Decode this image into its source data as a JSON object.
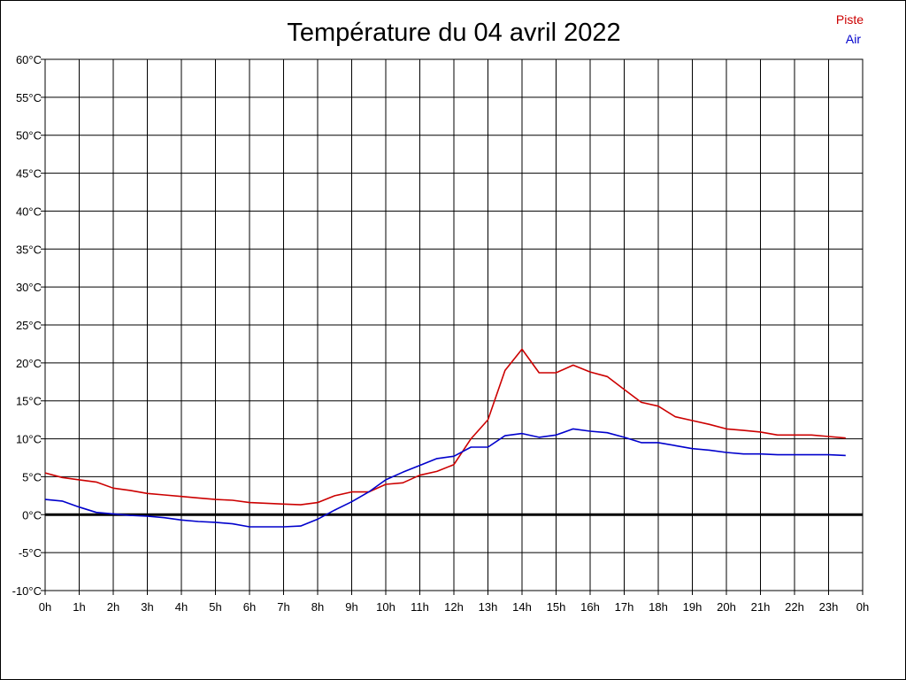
{
  "chart_data": {
    "type": "line",
    "title": "Température du 04 avril 2022",
    "xlabel": "",
    "ylabel": "",
    "x_unit_suffix": "h",
    "y_unit_suffix": "°C",
    "xlim": [
      0,
      24
    ],
    "ylim": [
      -10,
      60
    ],
    "x_ticks": [
      0,
      1,
      2,
      3,
      4,
      5,
      6,
      7,
      8,
      9,
      10,
      11,
      12,
      13,
      14,
      15,
      16,
      17,
      18,
      19,
      20,
      21,
      22,
      23,
      24
    ],
    "x_tick_labels": [
      "0h",
      "1h",
      "2h",
      "3h",
      "4h",
      "5h",
      "6h",
      "7h",
      "8h",
      "9h",
      "10h",
      "11h",
      "12h",
      "13h",
      "14h",
      "15h",
      "16h",
      "17h",
      "18h",
      "19h",
      "20h",
      "21h",
      "22h",
      "23h",
      "0h"
    ],
    "y_ticks": [
      -10,
      -5,
      0,
      5,
      10,
      15,
      20,
      25,
      30,
      35,
      40,
      45,
      50,
      55,
      60
    ],
    "y_tick_labels": [
      "-10°C",
      "-5°C",
      "0°C",
      "5°C",
      "10°C",
      "15°C",
      "20°C",
      "25°C",
      "30°C",
      "35°C",
      "40°C",
      "45°C",
      "50°C",
      "55°C",
      "60°C"
    ],
    "grid": true,
    "legend_position": "top-right",
    "zero_line": true,
    "series": [
      {
        "name": "Piste",
        "color": "#cc0000",
        "points": [
          [
            0,
            5.5
          ],
          [
            0.5,
            4.9
          ],
          [
            1,
            4.6
          ],
          [
            1.5,
            4.3
          ],
          [
            2,
            3.5
          ],
          [
            2.5,
            3.2
          ],
          [
            3,
            2.8
          ],
          [
            3.5,
            2.6
          ],
          [
            4,
            2.4
          ],
          [
            4.5,
            2.2
          ],
          [
            5,
            2.0
          ],
          [
            5.5,
            1.9
          ],
          [
            6,
            1.6
          ],
          [
            6.5,
            1.5
          ],
          [
            7,
            1.4
          ],
          [
            7.5,
            1.3
          ],
          [
            8,
            1.6
          ],
          [
            8.5,
            2.5
          ],
          [
            9,
            3.0
          ],
          [
            9.5,
            3.0
          ],
          [
            10,
            4.0
          ],
          [
            10.5,
            4.2
          ],
          [
            11,
            5.2
          ],
          [
            11.5,
            5.7
          ],
          [
            12,
            6.6
          ],
          [
            12.5,
            10.0
          ],
          [
            13,
            12.5
          ],
          [
            13.5,
            19.0
          ],
          [
            14,
            21.8
          ],
          [
            14.5,
            18.7
          ],
          [
            15,
            18.7
          ],
          [
            15.5,
            19.7
          ],
          [
            16,
            18.8
          ],
          [
            16.5,
            18.2
          ],
          [
            17,
            16.5
          ],
          [
            17.5,
            14.8
          ],
          [
            18,
            14.3
          ],
          [
            18.5,
            12.9
          ],
          [
            19,
            12.4
          ],
          [
            19.5,
            11.9
          ],
          [
            20,
            11.3
          ],
          [
            20.5,
            11.1
          ],
          [
            21,
            10.9
          ],
          [
            21.5,
            10.5
          ],
          [
            22,
            10.5
          ],
          [
            22.5,
            10.5
          ],
          [
            23,
            10.3
          ],
          [
            23.5,
            10.1
          ]
        ]
      },
      {
        "name": "Air",
        "color": "#0000cc",
        "points": [
          [
            0,
            2.0
          ],
          [
            0.5,
            1.8
          ],
          [
            1,
            1.0
          ],
          [
            1.5,
            0.3
          ],
          [
            2,
            0.1
          ],
          [
            2.5,
            -0.1
          ],
          [
            3,
            -0.2
          ],
          [
            3.5,
            -0.4
          ],
          [
            4,
            -0.7
          ],
          [
            4.5,
            -0.9
          ],
          [
            5,
            -1.0
          ],
          [
            5.5,
            -1.2
          ],
          [
            6,
            -1.6
          ],
          [
            6.5,
            -1.6
          ],
          [
            7,
            -1.6
          ],
          [
            7.5,
            -1.5
          ],
          [
            8,
            -0.6
          ],
          [
            8.5,
            0.6
          ],
          [
            9,
            1.7
          ],
          [
            9.5,
            3.0
          ],
          [
            10,
            4.6
          ],
          [
            10.5,
            5.6
          ],
          [
            11,
            6.5
          ],
          [
            11.5,
            7.4
          ],
          [
            12,
            7.7
          ],
          [
            12.5,
            8.9
          ],
          [
            13,
            8.9
          ],
          [
            13.5,
            10.4
          ],
          [
            14,
            10.7
          ],
          [
            14.5,
            10.2
          ],
          [
            15,
            10.5
          ],
          [
            15.5,
            11.3
          ],
          [
            16,
            11.0
          ],
          [
            16.5,
            10.8
          ],
          [
            17,
            10.2
          ],
          [
            17.5,
            9.5
          ],
          [
            18,
            9.5
          ],
          [
            18.5,
            9.1
          ],
          [
            19,
            8.7
          ],
          [
            19.5,
            8.5
          ],
          [
            20,
            8.2
          ],
          [
            20.5,
            8.0
          ],
          [
            21,
            8.0
          ],
          [
            21.5,
            7.9
          ],
          [
            22,
            7.9
          ],
          [
            22.5,
            7.9
          ],
          [
            23,
            7.9
          ],
          [
            23.5,
            7.8
          ]
        ]
      }
    ]
  }
}
